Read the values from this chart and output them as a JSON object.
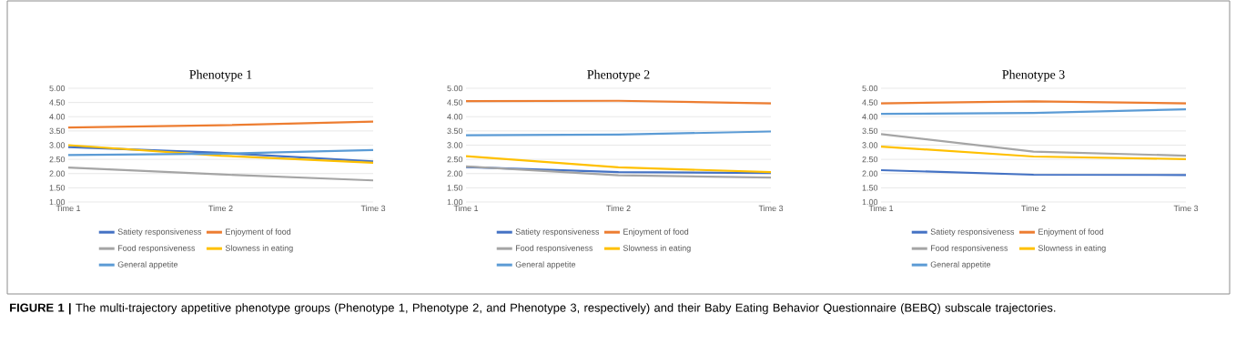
{
  "chart_data": [
    {
      "type": "line",
      "title": "Phenotype 1",
      "categories": [
        "Time 1",
        "Time 2",
        "Time 3"
      ],
      "ylim": [
        1,
        5
      ],
      "yticks": [
        {
          "value": 1,
          "label": "1.00"
        },
        {
          "value": 1.5,
          "label": "1.50"
        },
        {
          "value": 2,
          "label": "2.00"
        },
        {
          "value": 2.5,
          "label": "2.50"
        },
        {
          "value": 3,
          "label": "3.00"
        },
        {
          "value": 3.5,
          "label": "3.50"
        },
        {
          "value": 4,
          "label": "4.00"
        },
        {
          "value": 4.5,
          "label": "4.50"
        },
        {
          "value": 5,
          "label": "5.00"
        }
      ],
      "grid": "y",
      "legend": "bottom",
      "series": [
        {
          "name": "Satiety responsiveness",
          "color": "#4472c4",
          "values": [
            2.93,
            2.73,
            2.43
          ]
        },
        {
          "name": "Enjoyment of food",
          "color": "#ed7d31",
          "values": [
            3.62,
            3.7,
            3.83
          ]
        },
        {
          "name": "Food responsiveness",
          "color": "#a5a5a5",
          "values": [
            2.21,
            1.97,
            1.76
          ]
        },
        {
          "name": "Slowness in eating",
          "color": "#ffc000",
          "values": [
            3.0,
            2.63,
            2.38
          ]
        },
        {
          "name": "General appetite",
          "color": "#5b9bd5",
          "values": [
            2.65,
            2.7,
            2.83
          ]
        }
      ],
      "annotations": [
        "**FIGURE 1 |** The multi-trajectory appetitive phenotype groups (Phenotype 1, Phenotype 2, and Phenotype 3, respectively) and their Baby Eating Behavior Questionnaire (BEBQ) subscale trajectories."
      ]
    },
    {
      "type": "line",
      "title": "Phenotype 2",
      "categories": [
        "Time 1",
        "Time 2",
        "Time 3"
      ],
      "ylim": [
        1,
        5
      ],
      "yticks": [
        {
          "value": 1,
          "label": "1.00"
        },
        {
          "value": 1.5,
          "label": "1.50"
        },
        {
          "value": 2,
          "label": "2.00"
        },
        {
          "value": 2.5,
          "label": "2.50"
        },
        {
          "value": 3,
          "label": "3.00"
        },
        {
          "value": 3.5,
          "label": "3.50"
        },
        {
          "value": 4,
          "label": "4.00"
        },
        {
          "value": 4.5,
          "label": "4.50"
        },
        {
          "value": 5,
          "label": "5.00"
        }
      ],
      "grid": "y",
      "legend": "bottom",
      "series": [
        {
          "name": "Satiety responsiveness",
          "color": "#4472c4",
          "values": [
            2.23,
            2.05,
            2.02
          ]
        },
        {
          "name": "Enjoyment of food",
          "color": "#ed7d31",
          "values": [
            4.55,
            4.56,
            4.47
          ]
        },
        {
          "name": "Food responsiveness",
          "color": "#a5a5a5",
          "values": [
            2.25,
            1.94,
            1.86
          ]
        },
        {
          "name": "Slowness in eating",
          "color": "#ffc000",
          "values": [
            2.61,
            2.22,
            2.05
          ]
        },
        {
          "name": "General appetite",
          "color": "#5b9bd5",
          "values": [
            3.35,
            3.37,
            3.48
          ]
        }
      ]
    },
    {
      "type": "line",
      "title": "Phenotype 3",
      "categories": [
        "Time 1",
        "Time 2",
        "Time 3"
      ],
      "ylim": [
        1,
        5
      ],
      "yticks": [
        {
          "value": 1,
          "label": "1.00"
        },
        {
          "value": 1.5,
          "label": "1.50"
        },
        {
          "value": 2,
          "label": "2.00"
        },
        {
          "value": 2.5,
          "label": "2.50"
        },
        {
          "value": 3,
          "label": "3.00"
        },
        {
          "value": 3.5,
          "label": "3.50"
        },
        {
          "value": 4,
          "label": "4.00"
        },
        {
          "value": 4.5,
          "label": "4.50"
        },
        {
          "value": 5,
          "label": "5.00"
        }
      ],
      "grid": "y",
      "legend": "bottom",
      "series": [
        {
          "name": "Satiety responsiveness",
          "color": "#4472c4",
          "values": [
            2.12,
            1.96,
            1.95
          ]
        },
        {
          "name": "Enjoyment of food",
          "color": "#ed7d31",
          "values": [
            4.47,
            4.54,
            4.47
          ]
        },
        {
          "name": "Food responsiveness",
          "color": "#a5a5a5",
          "values": [
            3.39,
            2.77,
            2.63
          ]
        },
        {
          "name": "Slowness in eating",
          "color": "#ffc000",
          "values": [
            2.95,
            2.6,
            2.51
          ]
        },
        {
          "name": "General appetite",
          "color": "#5b9bd5",
          "values": [
            4.1,
            4.13,
            4.26
          ]
        }
      ]
    }
  ]
}
